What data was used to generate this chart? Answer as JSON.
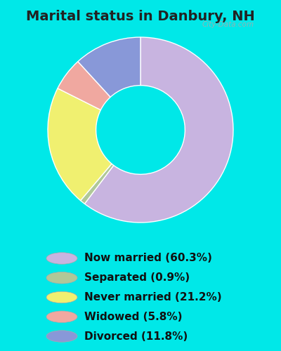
{
  "title": "Marital status in Danbury, NH",
  "slices": [
    {
      "label": "Now married (60.3%)",
      "value": 60.3,
      "color": "#c8b4e0"
    },
    {
      "label": "Separated (0.9%)",
      "value": 0.9,
      "color": "#b0c898"
    },
    {
      "label": "Never married (21.2%)",
      "value": 21.2,
      "color": "#f0f070"
    },
    {
      "label": "Widowed (5.8%)",
      "value": 5.8,
      "color": "#f0a8a0"
    },
    {
      "label": "Divorced (11.8%)",
      "value": 11.8,
      "color": "#8898d8"
    }
  ],
  "bg_color": "#00e8e8",
  "chart_bg_color": "#dff0e0",
  "title_fontsize": 14,
  "legend_fontsize": 11,
  "watermark": "City-Data.com",
  "start_angle": 90,
  "donut_width": 0.52
}
